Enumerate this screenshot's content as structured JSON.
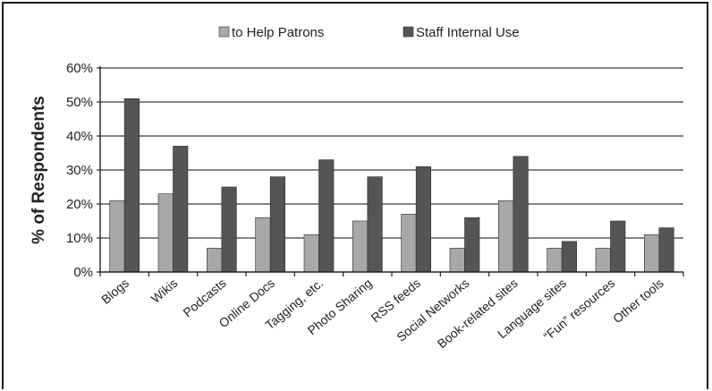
{
  "chart_data": {
    "type": "bar",
    "categories": [
      "Blogs",
      "Wikis",
      "Podcasts",
      "Online Docs",
      "Tagging, etc.",
      "Photo Sharing",
      "RSS feeds",
      "Social Networks",
      "Book-related sites",
      "Language sites",
      "“Fun” resources",
      "Other tools"
    ],
    "series": [
      {
        "name": "to Help Patrons",
        "values": [
          21,
          23,
          7,
          16,
          11,
          15,
          17,
          7,
          21,
          7,
          7,
          11
        ],
        "color": "#a8a8a8"
      },
      {
        "name": "Staff Internal Use",
        "values": [
          51,
          37,
          25,
          28,
          33,
          28,
          31,
          16,
          34,
          9,
          15,
          13
        ],
        "color": "#555555"
      }
    ],
    "ylabel": "% of Respondents",
    "xlabel": "",
    "ylim": [
      0,
      60
    ],
    "yticks": [
      "0%",
      "10%",
      "20%",
      "30%",
      "40%",
      "50%",
      "60%"
    ],
    "grid": true,
    "legend_position": "top"
  }
}
